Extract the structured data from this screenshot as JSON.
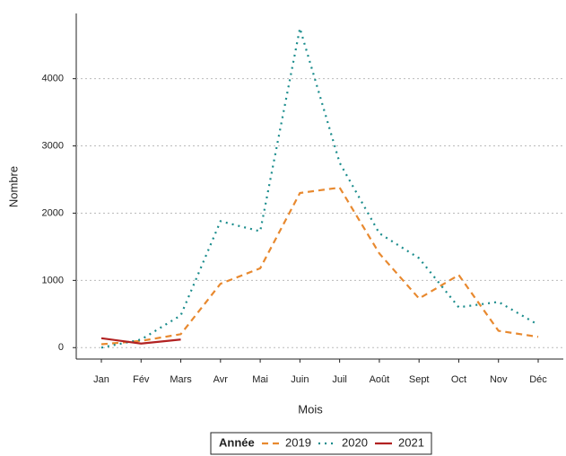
{
  "chart_data": {
    "type": "line",
    "x_label": "Mois",
    "y_label": "Nombre",
    "legend_title": "Année",
    "categories": [
      "Jan",
      "Fév",
      "Mars",
      "Avr",
      "Mai",
      "Juin",
      "Juil",
      "Août",
      "Sept",
      "Oct",
      "Nov",
      "Déc"
    ],
    "series": [
      {
        "name": "2019",
        "color": "#e8892f",
        "dash": "7,5",
        "values": [
          50,
          100,
          200,
          950,
          1180,
          2300,
          2380,
          1400,
          730,
          1080,
          250,
          160
        ]
      },
      {
        "name": "2020",
        "color": "#1a8c8c",
        "dash": "2,5",
        "values": [
          0,
          120,
          480,
          1880,
          1730,
          4750,
          2750,
          1700,
          1330,
          600,
          680,
          340
        ]
      },
      {
        "name": "2021",
        "color": "#b22222",
        "dash": "none",
        "values": [
          140,
          60,
          120,
          null,
          null,
          null,
          null,
          null,
          null,
          null,
          null,
          null
        ]
      }
    ],
    "ylim": [
      -170,
      4970
    ],
    "yticks": [
      0,
      1000,
      2000,
      3000,
      4000
    ],
    "grid": true
  }
}
